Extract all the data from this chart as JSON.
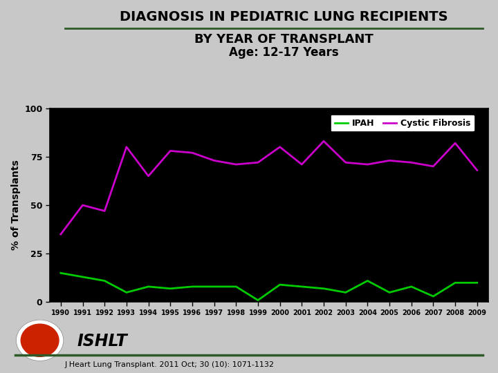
{
  "title_line1": "DIAGNOSIS IN PEDIATRIC LUNG RECIPIENTS",
  "title_line2": "BY YEAR OF TRANSPLANT",
  "title_line3": "Age: 12-17 Years",
  "years": [
    1990,
    1991,
    1992,
    1993,
    1994,
    1995,
    1996,
    1997,
    1998,
    1999,
    2000,
    2001,
    2002,
    2003,
    2004,
    2005,
    2006,
    2007,
    2008,
    2009
  ],
  "ipah": [
    15,
    13,
    11,
    5,
    8,
    7,
    8,
    8,
    8,
    1,
    9,
    8,
    7,
    5,
    11,
    5,
    8,
    3,
    10,
    10
  ],
  "cf": [
    35,
    50,
    47,
    80,
    65,
    78,
    77,
    73,
    71,
    72,
    80,
    71,
    83,
    72,
    71,
    73,
    72,
    70,
    82,
    68
  ],
  "ipah_color": "#00cc00",
  "cf_color": "#cc00cc",
  "plot_bg": "#000000",
  "fig_bg": "#c8c8c8",
  "ylabel": "% of Transplants",
  "ylim": [
    0,
    100
  ],
  "yticks": [
    0,
    25,
    50,
    75,
    100
  ],
  "legend_ipah": "IPAH",
  "legend_cf": "Cystic Fibrosis",
  "footer_text": "J Heart Lung Transplant. 2011 Oct; 30 (10): 1071-1132",
  "ishlt_text": "ISHLT",
  "line_width": 2.0,
  "title1_fontsize": 14,
  "title2_fontsize": 13,
  "title3_fontsize": 12,
  "dark_green": "#2d5a27"
}
